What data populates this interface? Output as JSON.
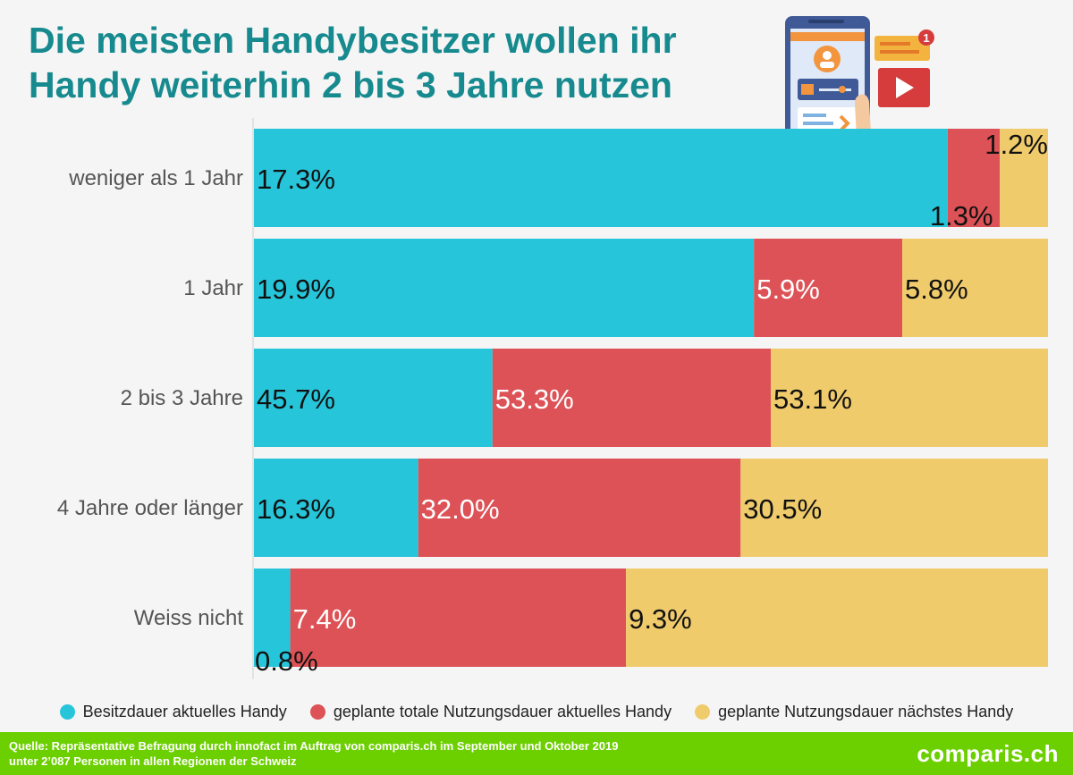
{
  "title": {
    "line1": "Die meisten Handybesitzer wollen ihr",
    "line2": "Handy weiterhin 2 bis 3 Jahre nutzen"
  },
  "chart_data": {
    "type": "bar",
    "orientation": "horizontal",
    "stacked": true,
    "categories": [
      "weniger als 1 Jahr",
      "1 Jahr",
      "2 bis 3 Jahre",
      "4 Jahre oder länger",
      "Weiss nicht"
    ],
    "series": [
      {
        "name": "Besitzdauer aktuelles Handy",
        "color": "#27c5da",
        "label_color": "#111111",
        "values": [
          17.3,
          19.9,
          45.7,
          16.3,
          0.8
        ]
      },
      {
        "name": "geplante totale Nutzungsdauer aktuelles Handy",
        "color": "#dd5256",
        "label_color": "#ffffff",
        "values": [
          1.3,
          5.9,
          53.3,
          32.0,
          7.4
        ]
      },
      {
        "name": "geplante Nutzungsdauer nächstes Handy",
        "color": "#f0cb6c",
        "label_color": "#111111",
        "values": [
          1.2,
          5.8,
          53.1,
          30.5,
          9.3
        ]
      }
    ],
    "value_suffix": "%",
    "gridlines": false,
    "legend_position": "bottom"
  },
  "legend": {
    "items": [
      {
        "label": "Besitzdauer aktuelles Handy",
        "color": "#27c5da"
      },
      {
        "label": "geplante totale Nutzungsdauer aktuelles Handy",
        "color": "#dd5256"
      },
      {
        "label": "geplante Nutzungsdauer nächstes Handy",
        "color": "#f0cb6c"
      }
    ]
  },
  "footer": {
    "source_line1": "Quelle: Repräsentative Befragung durch innofact im Auftrag von comparis.ch im September und Oktober 2019",
    "source_line2": "unter 2’087 Personen in allen Regionen der Schweiz",
    "brand": "comparis.ch"
  },
  "illustration": {
    "icon": "smartphone-hand-icon",
    "badge_count": "1"
  }
}
